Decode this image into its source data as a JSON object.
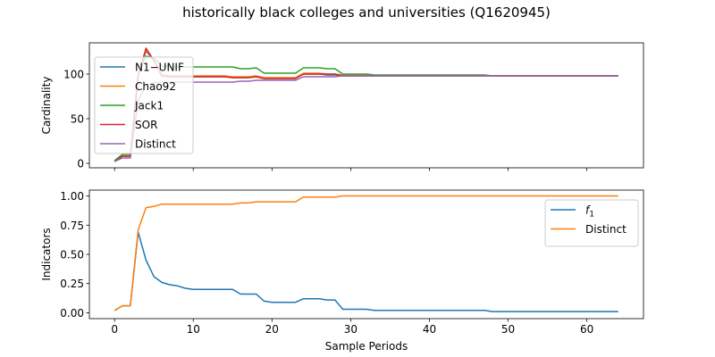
{
  "figure": {
    "title": "historically black colleges and universities (Q1620945)"
  },
  "chart_data": [
    {
      "type": "line",
      "title": "",
      "xlabel": "",
      "ylabel": "Cardinality",
      "xlim": [
        -3.2,
        67.2
      ],
      "ylim": [
        -5,
        135
      ],
      "xticks": [
        0,
        10,
        20,
        30,
        40,
        50,
        60
      ],
      "yticks": [
        0,
        50,
        100
      ],
      "show_xtick_labels": false,
      "grid": false,
      "legend": "upper-left",
      "x": [
        0,
        1,
        2,
        3,
        4,
        5,
        6,
        7,
        8,
        9,
        10,
        11,
        12,
        13,
        14,
        15,
        16,
        17,
        18,
        19,
        20,
        21,
        22,
        23,
        24,
        25,
        26,
        27,
        28,
        29,
        30,
        31,
        32,
        33,
        34,
        35,
        36,
        37,
        38,
        39,
        40,
        41,
        42,
        43,
        44,
        45,
        46,
        47,
        48,
        49,
        50,
        51,
        52,
        53,
        54,
        55,
        56,
        57,
        58,
        59,
        60,
        61,
        62,
        63,
        64
      ],
      "series": [
        {
          "name": "N1−UNIF",
          "color": "#1f77b4",
          "values": [
            2,
            8,
            8,
            98,
            126,
            115,
            98,
            97,
            97,
            97,
            97,
            97,
            97,
            97,
            97,
            96,
            96,
            96,
            97,
            95,
            95,
            95,
            95,
            95,
            100,
            100,
            100,
            99,
            99,
            98,
            98,
            98,
            98,
            98,
            98,
            98,
            98,
            98,
            98,
            98,
            98,
            98,
            98,
            98,
            98,
            98,
            98,
            98,
            98,
            98,
            98,
            98,
            98,
            98,
            98,
            98,
            98,
            98,
            98,
            98,
            98,
            98,
            98,
            98,
            98
          ]
        },
        {
          "name": "Chao92",
          "color": "#ff7f0e",
          "values": [
            2,
            8,
            8,
            98,
            127,
            116,
            99,
            98,
            98,
            98,
            98,
            98,
            98,
            98,
            98,
            97,
            97,
            97,
            98,
            96,
            96,
            96,
            96,
            96,
            101,
            101,
            101,
            100,
            100,
            99,
            99,
            99,
            99,
            98,
            98,
            98,
            98,
            98,
            98,
            98,
            98,
            98,
            98,
            98,
            98,
            98,
            98,
            98,
            98,
            98,
            98,
            98,
            98,
            98,
            98,
            98,
            98,
            98,
            98,
            98,
            98,
            98,
            98,
            98,
            98
          ]
        },
        {
          "name": "Jack1",
          "color": "#2ca02c",
          "values": [
            3,
            10,
            10,
            100,
            120,
            118,
            109,
            108,
            108,
            108,
            108,
            108,
            108,
            108,
            108,
            108,
            106,
            106,
            107,
            101,
            101,
            101,
            101,
            101,
            107,
            107,
            107,
            106,
            106,
            100,
            100,
            100,
            100,
            99,
            99,
            99,
            99,
            99,
            99,
            99,
            99,
            99,
            99,
            99,
            99,
            99,
            99,
            99,
            98,
            98,
            98,
            98,
            98,
            98,
            98,
            98,
            98,
            98,
            98,
            98,
            98,
            98,
            98,
            98,
            98
          ]
        },
        {
          "name": "SOR",
          "color": "#d62728",
          "values": [
            2,
            8,
            8,
            98,
            129,
            115,
            98,
            97,
            97,
            97,
            97,
            97,
            97,
            97,
            97,
            96,
            96,
            96,
            97,
            95,
            95,
            95,
            95,
            95,
            100,
            100,
            100,
            100,
            100,
            98,
            98,
            98,
            98,
            98,
            98,
            98,
            98,
            98,
            98,
            98,
            98,
            98,
            98,
            98,
            98,
            98,
            98,
            98,
            98,
            98,
            98,
            98,
            98,
            98,
            98,
            98,
            98,
            98,
            98,
            98,
            98,
            98,
            98,
            98,
            98
          ]
        },
        {
          "name": "Distinct",
          "color": "#9467bd",
          "values": [
            2,
            6,
            6,
            70,
            88,
            90,
            91,
            91,
            91,
            91,
            91,
            91,
            91,
            91,
            91,
            91,
            92,
            92,
            93,
            93,
            93,
            93,
            93,
            93,
            97,
            97,
            97,
            97,
            97,
            98,
            98,
            98,
            98,
            98,
            98,
            98,
            98,
            98,
            98,
            98,
            98,
            98,
            98,
            98,
            98,
            98,
            98,
            98,
            98,
            98,
            98,
            98,
            98,
            98,
            98,
            98,
            98,
            98,
            98,
            98,
            98,
            98,
            98,
            98,
            98
          ]
        }
      ]
    },
    {
      "type": "line",
      "title": "",
      "xlabel": "Sample Periods",
      "ylabel": "Indicators",
      "xlim": [
        -3.2,
        67.2
      ],
      "ylim": [
        -0.05,
        1.05
      ],
      "xticks": [
        0,
        10,
        20,
        30,
        40,
        50,
        60
      ],
      "yticks": [
        0.0,
        0.25,
        0.5,
        0.75,
        1.0
      ],
      "xtick_labels": [
        "0",
        "10",
        "20",
        "30",
        "40",
        "50",
        "60"
      ],
      "ytick_labels": [
        "0.00",
        "0.25",
        "0.50",
        "0.75",
        "1.00"
      ],
      "grid": false,
      "legend": "upper-right",
      "x": [
        0,
        1,
        2,
        3,
        4,
        5,
        6,
        7,
        8,
        9,
        10,
        11,
        12,
        13,
        14,
        15,
        16,
        17,
        18,
        19,
        20,
        21,
        22,
        23,
        24,
        25,
        26,
        27,
        28,
        29,
        30,
        31,
        32,
        33,
        34,
        35,
        36,
        37,
        38,
        39,
        40,
        41,
        42,
        43,
        44,
        45,
        46,
        47,
        48,
        49,
        50,
        51,
        52,
        53,
        54,
        55,
        56,
        57,
        58,
        59,
        60,
        61,
        62,
        63,
        64
      ],
      "series": [
        {
          "name": "f1",
          "display": "f",
          "subscript": "1",
          "color": "#1f77b4",
          "values": [
            0.02,
            0.06,
            0.06,
            0.69,
            0.45,
            0.31,
            0.26,
            0.24,
            0.23,
            0.21,
            0.2,
            0.2,
            0.2,
            0.2,
            0.2,
            0.2,
            0.16,
            0.16,
            0.16,
            0.1,
            0.09,
            0.09,
            0.09,
            0.09,
            0.12,
            0.12,
            0.12,
            0.11,
            0.11,
            0.03,
            0.03,
            0.03,
            0.03,
            0.02,
            0.02,
            0.02,
            0.02,
            0.02,
            0.02,
            0.02,
            0.02,
            0.02,
            0.02,
            0.02,
            0.02,
            0.02,
            0.02,
            0.02,
            0.01,
            0.01,
            0.01,
            0.01,
            0.01,
            0.01,
            0.01,
            0.01,
            0.01,
            0.01,
            0.01,
            0.01,
            0.01,
            0.01,
            0.01,
            0.01,
            0.01
          ]
        },
        {
          "name": "Distinct",
          "color": "#ff7f0e",
          "values": [
            0.02,
            0.06,
            0.06,
            0.71,
            0.9,
            0.91,
            0.93,
            0.93,
            0.93,
            0.93,
            0.93,
            0.93,
            0.93,
            0.93,
            0.93,
            0.93,
            0.94,
            0.94,
            0.95,
            0.95,
            0.95,
            0.95,
            0.95,
            0.95,
            0.99,
            0.99,
            0.99,
            0.99,
            0.99,
            1.0,
            1.0,
            1.0,
            1.0,
            1.0,
            1.0,
            1.0,
            1.0,
            1.0,
            1.0,
            1.0,
            1.0,
            1.0,
            1.0,
            1.0,
            1.0,
            1.0,
            1.0,
            1.0,
            1.0,
            1.0,
            1.0,
            1.0,
            1.0,
            1.0,
            1.0,
            1.0,
            1.0,
            1.0,
            1.0,
            1.0,
            1.0,
            1.0,
            1.0,
            1.0,
            1.0
          ]
        }
      ]
    }
  ]
}
